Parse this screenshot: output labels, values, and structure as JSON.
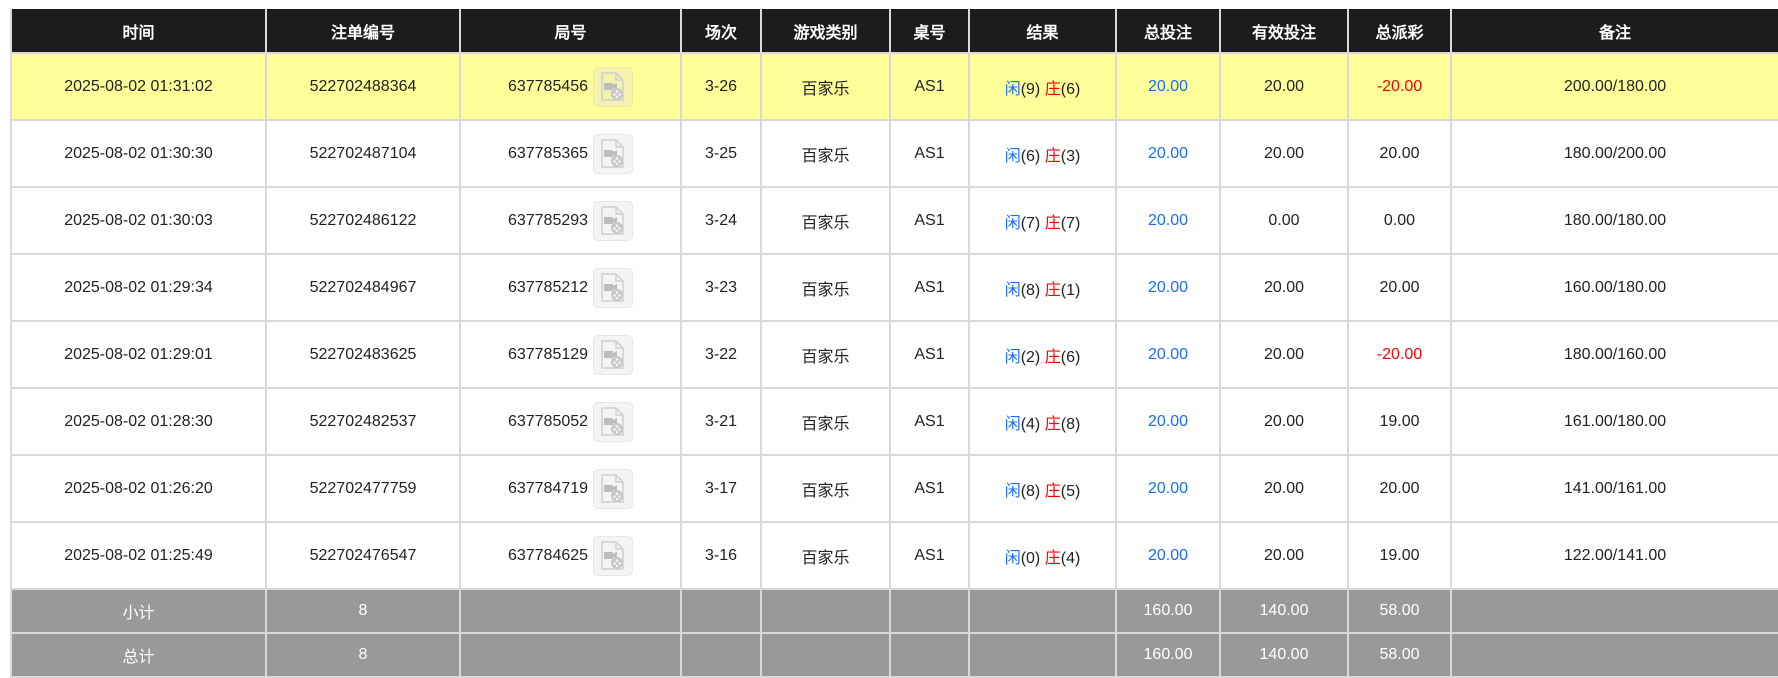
{
  "headers": [
    "时间",
    "注单编号",
    "局号",
    "场次",
    "游戏类别",
    "桌号",
    "结果",
    "总投注",
    "有效投注",
    "总派彩",
    "备注"
  ],
  "colors": {
    "header_bg": "#1c1c1c",
    "highlight_row": "#ffff99",
    "summary_bg": "#999999",
    "player": "#1a6cff",
    "banker": "#ff0000"
  },
  "rows": [
    {
      "time": "2025-08-02 01:31:02",
      "bet_id": "522702488364",
      "round": "637785456",
      "shoe": "3-26",
      "game": "百家乐",
      "table": "AS1",
      "player_label": "闲",
      "player_score": "(9)",
      "banker_label": "庄",
      "banker_score": "(6)",
      "total_bet": "20.00",
      "valid_bet": "20.00",
      "payout": "-20.00",
      "payout_negative": true,
      "note": "200.00/180.00",
      "highlighted": true,
      "icon": "video-file-icon"
    },
    {
      "time": "2025-08-02 01:30:30",
      "bet_id": "522702487104",
      "round": "637785365",
      "shoe": "3-25",
      "game": "百家乐",
      "table": "AS1",
      "player_label": "闲",
      "player_score": "(6)",
      "banker_label": "庄",
      "banker_score": "(3)",
      "total_bet": "20.00",
      "valid_bet": "20.00",
      "payout": "20.00",
      "payout_negative": false,
      "note": "180.00/200.00",
      "highlighted": false,
      "icon": "video-file-icon"
    },
    {
      "time": "2025-08-02 01:30:03",
      "bet_id": "522702486122",
      "round": "637785293",
      "shoe": "3-24",
      "game": "百家乐",
      "table": "AS1",
      "player_label": "闲",
      "player_score": "(7)",
      "banker_label": "庄",
      "banker_score": "(7)",
      "total_bet": "20.00",
      "valid_bet": "0.00",
      "payout": "0.00",
      "payout_negative": false,
      "note": "180.00/180.00",
      "highlighted": false,
      "icon": "video-file-icon"
    },
    {
      "time": "2025-08-02 01:29:34",
      "bet_id": "522702484967",
      "round": "637785212",
      "shoe": "3-23",
      "game": "百家乐",
      "table": "AS1",
      "player_label": "闲",
      "player_score": "(8)",
      "banker_label": "庄",
      "banker_score": "(1)",
      "total_bet": "20.00",
      "valid_bet": "20.00",
      "payout": "20.00",
      "payout_negative": false,
      "note": "160.00/180.00",
      "highlighted": false,
      "icon": "video-file-icon"
    },
    {
      "time": "2025-08-02 01:29:01",
      "bet_id": "522702483625",
      "round": "637785129",
      "shoe": "3-22",
      "game": "百家乐",
      "table": "AS1",
      "player_label": "闲",
      "player_score": "(2)",
      "banker_label": "庄",
      "banker_score": "(6)",
      "total_bet": "20.00",
      "valid_bet": "20.00",
      "payout": "-20.00",
      "payout_negative": true,
      "note": "180.00/160.00",
      "highlighted": false,
      "icon": "video-file-icon"
    },
    {
      "time": "2025-08-02 01:28:30",
      "bet_id": "522702482537",
      "round": "637785052",
      "shoe": "3-21",
      "game": "百家乐",
      "table": "AS1",
      "player_label": "闲",
      "player_score": "(4)",
      "banker_label": "庄",
      "banker_score": "(8)",
      "total_bet": "20.00",
      "valid_bet": "20.00",
      "payout": "19.00",
      "payout_negative": false,
      "note": "161.00/180.00",
      "highlighted": false,
      "icon": "video-file-icon"
    },
    {
      "time": "2025-08-02 01:26:20",
      "bet_id": "522702477759",
      "round": "637784719",
      "shoe": "3-17",
      "game": "百家乐",
      "table": "AS1",
      "player_label": "闲",
      "player_score": "(8)",
      "banker_label": "庄",
      "banker_score": "(5)",
      "total_bet": "20.00",
      "valid_bet": "20.00",
      "payout": "20.00",
      "payout_negative": false,
      "note": "141.00/161.00",
      "highlighted": false,
      "icon": "video-file-icon"
    },
    {
      "time": "2025-08-02 01:25:49",
      "bet_id": "522702476547",
      "round": "637784625",
      "shoe": "3-16",
      "game": "百家乐",
      "table": "AS1",
      "player_label": "闲",
      "player_score": "(0)",
      "banker_label": "庄",
      "banker_score": "(4)",
      "total_bet": "20.00",
      "valid_bet": "20.00",
      "payout": "19.00",
      "payout_negative": false,
      "note": "122.00/141.00",
      "highlighted": false,
      "icon": "video-file-icon"
    }
  ],
  "summary": [
    {
      "label": "小计",
      "count": "8",
      "total_bet": "160.00",
      "valid_bet": "140.00",
      "payout": "58.00"
    },
    {
      "label": "总计",
      "count": "8",
      "total_bet": "160.00",
      "valid_bet": "140.00",
      "payout": "58.00"
    }
  ]
}
